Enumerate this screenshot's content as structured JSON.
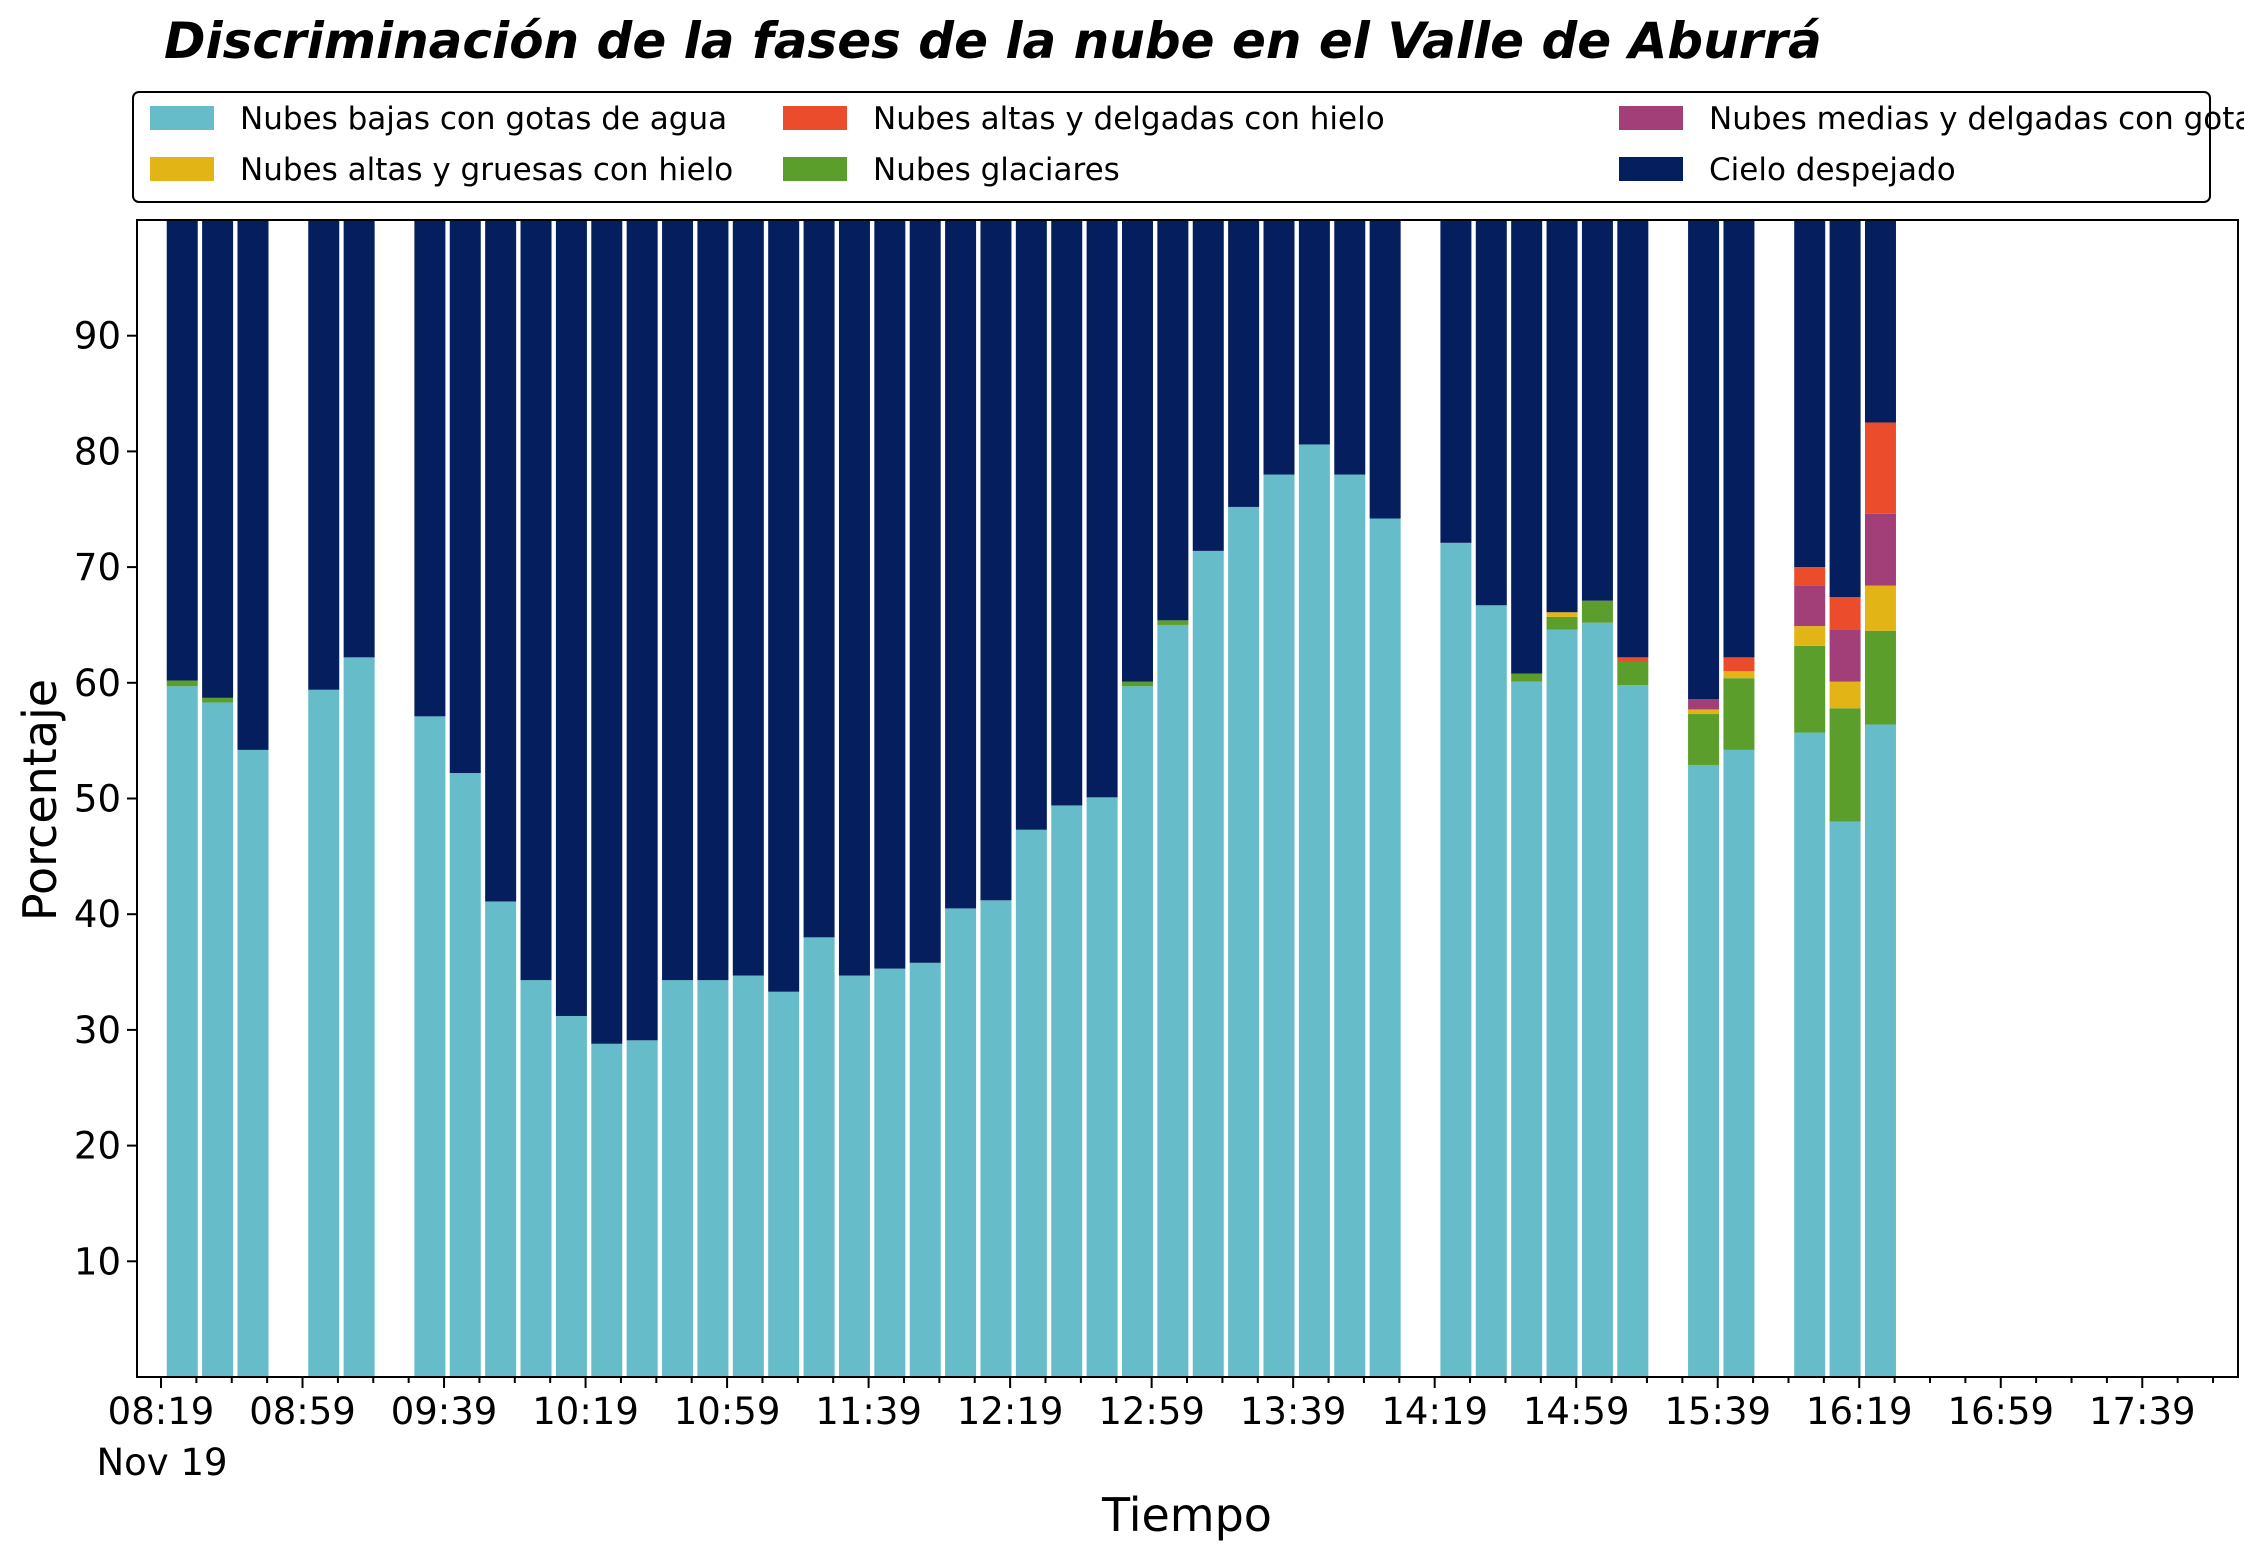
{
  "chart_data": {
    "type": "bar",
    "stacked": true,
    "title": "Discriminación de la fases de la nube en el Valle de Aburrá",
    "xlabel": "Tiempo",
    "ylabel": "Porcentaje",
    "ylim": [
      0,
      100
    ],
    "yticks": [
      10,
      20,
      30,
      40,
      50,
      60,
      70,
      80,
      90
    ],
    "x_tick_labels": [
      "08:19",
      "08:59",
      "09:39",
      "10:19",
      "10:59",
      "11:39",
      "12:19",
      "12:59",
      "13:39",
      "14:19",
      "14:59",
      "15:39",
      "16:19",
      "16:59",
      "17:39"
    ],
    "x_date_label": "Nov 19",
    "grid": false,
    "legend": "top, 3 columns",
    "slot_minutes": 10,
    "slot_count": 60,
    "series": [
      {
        "name": "Nubes bajas con gotas de agua",
        "color": "#66bcc9"
      },
      {
        "name": "Nubes glaciares",
        "color": "#5b9e2c"
      },
      {
        "name": "Nubes altas y gruesas con hielo",
        "color": "#e3b416"
      },
      {
        "name": "Nubes medias y delgadas con gotas de agua",
        "color": "#a23f78"
      },
      {
        "name": "Nubes altas y delgadas con hielo",
        "color": "#ea4c2c"
      },
      {
        "name": "Cielo despejado",
        "color": "#041e5e"
      }
    ],
    "legend_order": [
      0,
      2,
      4,
      1,
      3,
      5
    ],
    "bars": [
      {
        "time": "08:25",
        "values": [
          59.7,
          0.5,
          0,
          0,
          0,
          39.8
        ]
      },
      {
        "time": "08:35",
        "values": [
          58.3,
          0.4,
          0,
          0,
          0,
          41.3
        ]
      },
      {
        "time": "08:45",
        "values": [
          54.2,
          0,
          0,
          0,
          0,
          45.8
        ]
      },
      {
        "time": "09:05",
        "values": [
          59.4,
          0,
          0,
          0,
          0,
          40.6
        ]
      },
      {
        "time": "09:15",
        "values": [
          62.2,
          0,
          0,
          0,
          0,
          37.8
        ]
      },
      {
        "time": "09:35",
        "values": [
          57.1,
          0,
          0,
          0,
          0,
          42.9
        ]
      },
      {
        "time": "09:45",
        "values": [
          52.2,
          0,
          0,
          0,
          0,
          47.8
        ]
      },
      {
        "time": "09:55",
        "values": [
          41.1,
          0,
          0,
          0,
          0,
          58.9
        ]
      },
      {
        "time": "10:05",
        "values": [
          34.3,
          0,
          0,
          0,
          0,
          65.7
        ]
      },
      {
        "time": "10:15",
        "values": [
          31.2,
          0,
          0,
          0,
          0,
          68.8
        ]
      },
      {
        "time": "10:25",
        "values": [
          28.8,
          0,
          0,
          0,
          0,
          71.2
        ]
      },
      {
        "time": "10:35",
        "values": [
          29.1,
          0,
          0,
          0,
          0,
          70.9
        ]
      },
      {
        "time": "10:45",
        "values": [
          34.3,
          0,
          0,
          0,
          0,
          65.7
        ]
      },
      {
        "time": "10:55",
        "values": [
          34.3,
          0,
          0,
          0,
          0,
          65.7
        ]
      },
      {
        "time": "11:05",
        "values": [
          34.7,
          0,
          0,
          0,
          0,
          65.3
        ]
      },
      {
        "time": "11:15",
        "values": [
          33.3,
          0,
          0,
          0,
          0,
          66.7
        ]
      },
      {
        "time": "11:25",
        "values": [
          38.0,
          0,
          0,
          0,
          0,
          62.0
        ]
      },
      {
        "time": "11:35",
        "values": [
          34.7,
          0,
          0,
          0,
          0,
          65.3
        ]
      },
      {
        "time": "11:45",
        "values": [
          35.3,
          0,
          0,
          0,
          0,
          64.7
        ]
      },
      {
        "time": "11:55",
        "values": [
          35.8,
          0,
          0,
          0,
          0,
          64.2
        ]
      },
      {
        "time": "12:05",
        "values": [
          40.5,
          0,
          0,
          0,
          0,
          59.5
        ]
      },
      {
        "time": "12:15",
        "values": [
          41.2,
          0,
          0,
          0,
          0,
          58.8
        ]
      },
      {
        "time": "12:25",
        "values": [
          47.3,
          0,
          0,
          0,
          0,
          52.7
        ]
      },
      {
        "time": "12:35",
        "values": [
          49.4,
          0,
          0,
          0,
          0,
          50.6
        ]
      },
      {
        "time": "12:45",
        "values": [
          50.1,
          0,
          0,
          0,
          0,
          49.9
        ]
      },
      {
        "time": "12:55",
        "values": [
          59.7,
          0.4,
          0,
          0,
          0,
          39.9
        ]
      },
      {
        "time": "13:05",
        "values": [
          65.0,
          0.4,
          0,
          0,
          0,
          34.6
        ]
      },
      {
        "time": "13:15",
        "values": [
          71.4,
          0,
          0,
          0,
          0,
          28.6
        ]
      },
      {
        "time": "13:25",
        "values": [
          75.2,
          0,
          0,
          0,
          0,
          24.8
        ]
      },
      {
        "time": "13:35",
        "values": [
          78.0,
          0,
          0,
          0,
          0,
          22.0
        ]
      },
      {
        "time": "13:45",
        "values": [
          80.6,
          0,
          0,
          0,
          0,
          19.4
        ]
      },
      {
        "time": "13:55",
        "values": [
          78.0,
          0,
          0,
          0,
          0,
          22.0
        ]
      },
      {
        "time": "14:05",
        "values": [
          74.2,
          0,
          0,
          0,
          0,
          25.8
        ]
      },
      {
        "time": "14:25",
        "values": [
          72.1,
          0,
          0,
          0,
          0,
          27.9
        ]
      },
      {
        "time": "14:35",
        "values": [
          66.7,
          0,
          0,
          0,
          0,
          33.3
        ]
      },
      {
        "time": "14:45",
        "values": [
          60.1,
          0.7,
          0,
          0,
          0,
          39.2
        ]
      },
      {
        "time": "14:55",
        "values": [
          64.6,
          1.1,
          0.4,
          0,
          0,
          33.9
        ]
      },
      {
        "time": "15:05",
        "values": [
          65.2,
          1.9,
          0,
          0,
          0,
          32.9
        ]
      },
      {
        "time": "15:15",
        "values": [
          59.8,
          2.0,
          0,
          0,
          0.4,
          37.8
        ]
      },
      {
        "time": "15:35",
        "values": [
          52.9,
          4.4,
          0.4,
          0.9,
          0,
          41.4
        ]
      },
      {
        "time": "15:45",
        "values": [
          54.2,
          6.2,
          0.6,
          0,
          1.2,
          37.8
        ]
      },
      {
        "time": "16:05",
        "values": [
          55.7,
          7.5,
          1.7,
          3.5,
          1.6,
          30.0
        ]
      },
      {
        "time": "16:15",
        "values": [
          48.0,
          9.8,
          2.3,
          4.5,
          2.8,
          32.6
        ]
      },
      {
        "time": "16:25",
        "values": [
          56.4,
          8.1,
          3.9,
          6.2,
          7.9,
          17.5
        ]
      }
    ]
  }
}
